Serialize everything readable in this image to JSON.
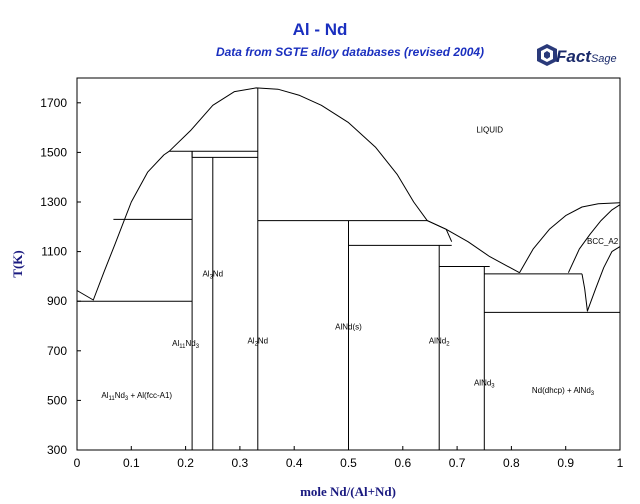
{
  "header": {
    "title": "Al - Nd",
    "subtitle": "Data from SGTE alloy databases (revised 2004)",
    "logo_text": "FactSage",
    "logo_fact": "Fact",
    "logo_sage": "Sage"
  },
  "chart_data": {
    "type": "phase-diagram",
    "title": "Al - Nd",
    "subtitle": "Data from SGTE alloy databases (revised 2004)",
    "xlabel": "mole Nd/(Al+Nd)",
    "ylabel": "T(K)",
    "xlim": [
      0,
      1
    ],
    "ylim": [
      300,
      1800
    ],
    "xticks": [
      "0",
      "0.1",
      "0.2",
      "0.3",
      "0.4",
      "0.5",
      "0.6",
      "0.7",
      "0.8",
      "0.9",
      "1"
    ],
    "yticks": [
      "300",
      "500",
      "700",
      "900",
      "1100",
      "1300",
      "1500",
      "1700"
    ],
    "grid": false,
    "line_color": "#000000",
    "title_color": "#1a2fbf",
    "axis_title_color": "#1a1a80",
    "curves": [
      {
        "name": "liquidus-al-rich",
        "points": [
          [
            0,
            943
          ],
          [
            0.03,
            905
          ],
          [
            0.05,
            1020
          ],
          [
            0.07,
            1130
          ],
          [
            0.1,
            1300
          ],
          [
            0.13,
            1420
          ],
          [
            0.16,
            1490
          ],
          [
            0.17,
            1505
          ]
        ]
      },
      {
        "name": "liquidus-central",
        "points": [
          [
            0.17,
            1505
          ],
          [
            0.21,
            1590
          ],
          [
            0.25,
            1690
          ],
          [
            0.29,
            1745
          ],
          [
            0.33,
            1760
          ],
          [
            0.37,
            1755
          ],
          [
            0.41,
            1730
          ],
          [
            0.45,
            1690
          ],
          [
            0.5,
            1620
          ],
          [
            0.55,
            1520
          ],
          [
            0.59,
            1410
          ],
          [
            0.62,
            1300
          ],
          [
            0.645,
            1225
          ],
          [
            0.68,
            1190
          ],
          [
            0.72,
            1140
          ],
          [
            0.76,
            1080
          ],
          [
            0.815,
            1015
          ]
        ]
      },
      {
        "name": "liquidus-nd-rich",
        "points": [
          [
            0.815,
            1015
          ],
          [
            0.84,
            1110
          ],
          [
            0.87,
            1190
          ],
          [
            0.9,
            1245
          ],
          [
            0.93,
            1280
          ],
          [
            0.96,
            1293
          ],
          [
            1.0,
            1297
          ]
        ]
      },
      {
        "name": "bcc-boundary-upper",
        "points": [
          [
            0.905,
            1015
          ],
          [
            0.925,
            1110
          ],
          [
            0.945,
            1170
          ],
          [
            0.965,
            1225
          ],
          [
            0.985,
            1268
          ],
          [
            1.0,
            1289
          ]
        ]
      },
      {
        "name": "bcc-boundary-lower",
        "points": [
          [
            0.93,
            1010
          ],
          [
            0.935,
            950
          ],
          [
            0.94,
            860
          ],
          [
            0.955,
            950
          ],
          [
            0.97,
            1035
          ],
          [
            0.985,
            1100
          ],
          [
            1.0,
            1120
          ]
        ]
      },
      {
        "name": "liquid-al3nd-boundary",
        "points": [
          [
            0.645,
            1225
          ],
          [
            0.68,
            1190
          ],
          [
            0.69,
            1140
          ]
        ]
      }
    ],
    "lines": [
      [
        [
          0,
          900
        ],
        [
          0.212,
          900
        ]
      ],
      [
        [
          0.212,
          300
        ],
        [
          0.212,
          1505
        ]
      ],
      [
        [
          0.25,
          300
        ],
        [
          0.25,
          1480
        ]
      ],
      [
        [
          0.333,
          300
        ],
        [
          0.333,
          1760
        ]
      ],
      [
        [
          0.5,
          300
        ],
        [
          0.5,
          1225
        ]
      ],
      [
        [
          0.667,
          300
        ],
        [
          0.667,
          1125
        ]
      ],
      [
        [
          0.75,
          300
        ],
        [
          0.75,
          1040
        ]
      ],
      [
        [
          0.067,
          1230
        ],
        [
          0.212,
          1230
        ]
      ],
      [
        [
          0.17,
          1505
        ],
        [
          0.333,
          1505
        ]
      ],
      [
        [
          0.212,
          1505
        ],
        [
          0.212,
          1480
        ]
      ],
      [
        [
          0.212,
          1480
        ],
        [
          0.333,
          1480
        ]
      ],
      [
        [
          0.333,
          1225
        ],
        [
          0.645,
          1225
        ]
      ],
      [
        [
          0.5,
          1125
        ],
        [
          0.69,
          1125
        ]
      ],
      [
        [
          0.667,
          1040
        ],
        [
          0.76,
          1040
        ]
      ],
      [
        [
          0.75,
          1010
        ],
        [
          0.93,
          1010
        ]
      ],
      [
        [
          0.75,
          855
        ],
        [
          1.0,
          855
        ]
      ]
    ],
    "labels": [
      {
        "text": "LIQUID",
        "x": 0.76,
        "y": 1580
      },
      {
        "text": "BCC_A2",
        "x": 0.968,
        "y": 1130
      },
      {
        "text": "Al3Nd",
        "html": [
          "Al",
          "3",
          "Nd"
        ],
        "x": 0.25,
        "y": 1000
      },
      {
        "text": "Al11Nd3",
        "html": [
          "Al",
          "11",
          "Nd",
          "3"
        ],
        "x": 0.2,
        "y": 720
      },
      {
        "text": "Al2Nd",
        "html": [
          "Al",
          "2",
          "Nd"
        ],
        "x": 0.333,
        "y": 730
      },
      {
        "text": "AlNd(s)",
        "x": 0.5,
        "y": 785
      },
      {
        "text": "AlNd2",
        "html": [
          "AlNd",
          "2"
        ],
        "x": 0.667,
        "y": 730
      },
      {
        "text": "AlNd3",
        "html": [
          "AlNd",
          "3"
        ],
        "x": 0.75,
        "y": 560
      },
      {
        "text": "Al11Nd3 + Al(fcc-A1)",
        "html": [
          "Al",
          "11",
          "Nd",
          "3",
          " + Al(fcc-A1)"
        ],
        "x": 0.11,
        "y": 510
      },
      {
        "text": "Nd(dhcp) + AlNd3",
        "html": [
          "Nd(dhcp) + AlNd",
          "3"
        ],
        "x": 0.895,
        "y": 530
      }
    ]
  }
}
